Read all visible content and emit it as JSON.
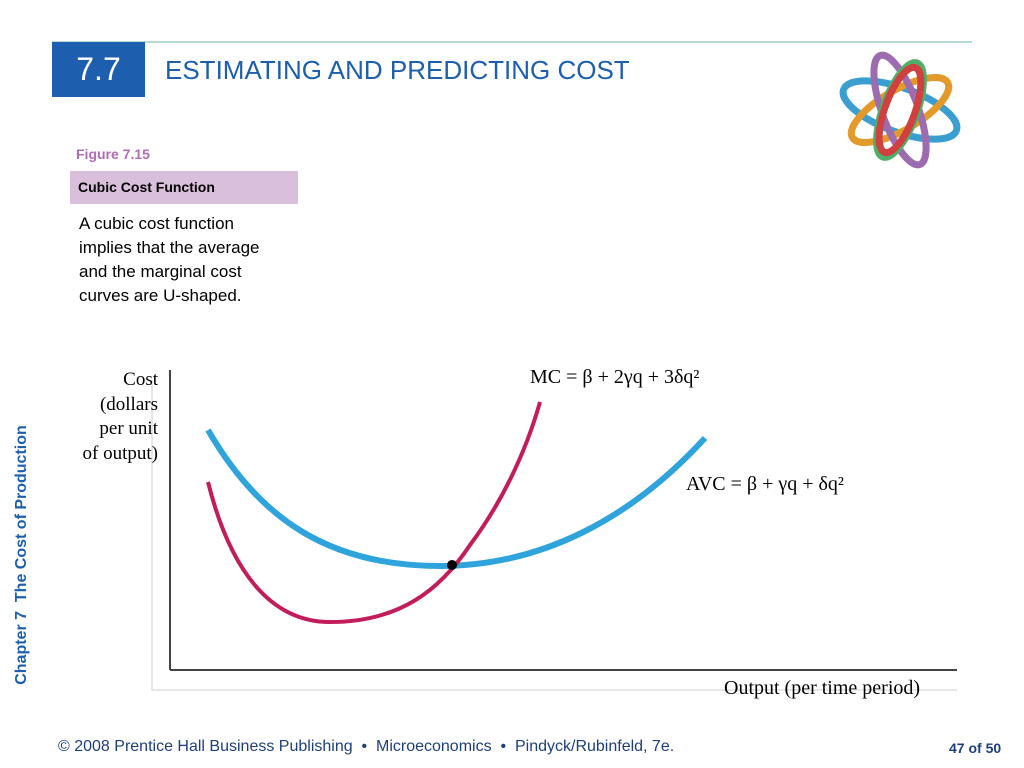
{
  "header": {
    "section": "7.7",
    "title": "ESTIMATING AND PREDICTING COST"
  },
  "figure": {
    "number": "Figure 7.15",
    "caption": "Cubic Cost Function",
    "description": [
      "A cubic cost function",
      "implies that the average",
      "and the marginal cost",
      "curves are U-shaped."
    ]
  },
  "diagram": {
    "y_axis_label": [
      "Cost",
      "(dollars",
      "per unit",
      "of output)"
    ],
    "x_axis_label": "Output (per time period)",
    "mc_label": "MC = β + 2γq + 3δq²",
    "avc_label": "AVC = β + γq + δq²"
  },
  "sidebar": "Chapter 7  The Cost of Production",
  "footer": {
    "text": "© 2008 Prentice Hall Business Publishing  •  Microeconomics  •  Pindyck/Rubinfeld, 7e.",
    "page": "47 of 50"
  }
}
